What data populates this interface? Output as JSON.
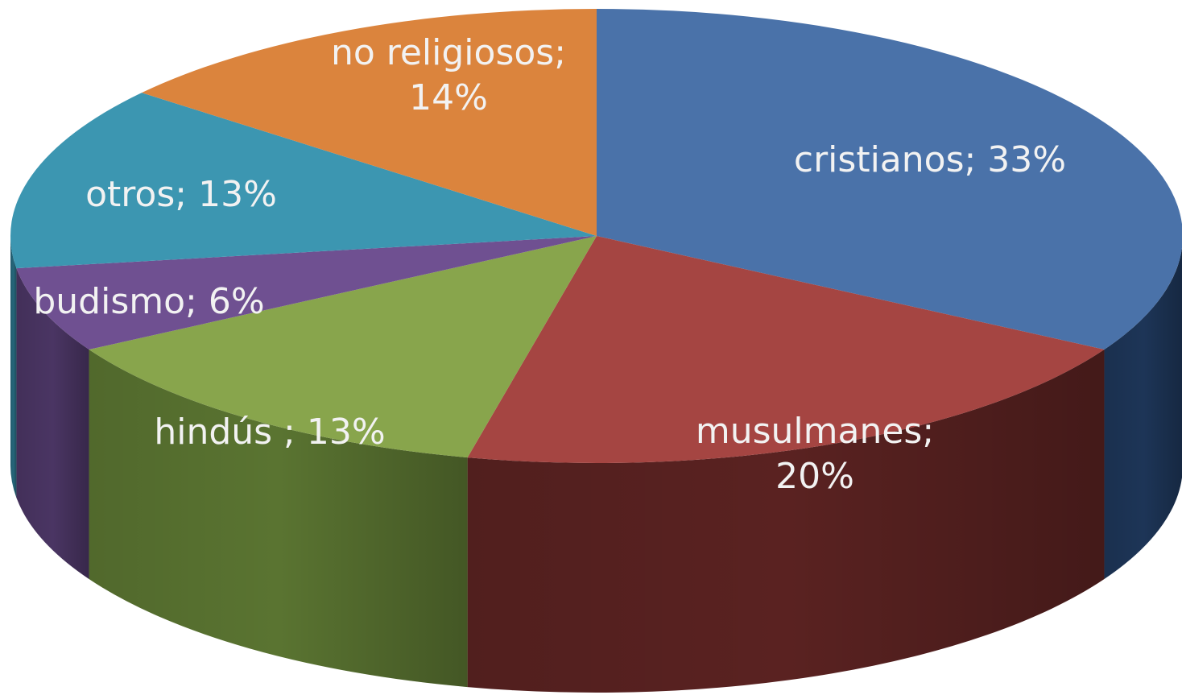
{
  "chart_data": {
    "type": "pie",
    "variant": "3d",
    "title": "",
    "start": "12 o'clock, clockwise",
    "slices": [
      {
        "category": "cristianos",
        "value": 33,
        "label_lines": [
          "cristianos; 33%"
        ],
        "color": "#4a72a9",
        "side_color": "#1d3557"
      },
      {
        "category": "musulmanes",
        "value": 20,
        "label_lines": [
          "musulmanes;",
          "20%"
        ],
        "color": "#a54542",
        "side_color": "#5a2221"
      },
      {
        "category": "hindús ",
        "value": 13,
        "label_lines": [
          "hindús ; 13%"
        ],
        "color": "#88a54c",
        "side_color": "#5a7431"
      },
      {
        "category": "budismo",
        "value": 6,
        "label_lines": [
          "budismo; 6%"
        ],
        "color": "#6f5091",
        "side_color": "#4a3563"
      },
      {
        "category": "otros",
        "value": 13,
        "label_lines": [
          "otros; 13%"
        ],
        "color": "#3c96b1",
        "side_color": "#26667a"
      },
      {
        "category": "no religiosos",
        "value": 14,
        "label_lines": [
          "no religiosos;",
          "14%"
        ],
        "color": "#db843d",
        "side_color": "#97541f"
      }
    ]
  }
}
